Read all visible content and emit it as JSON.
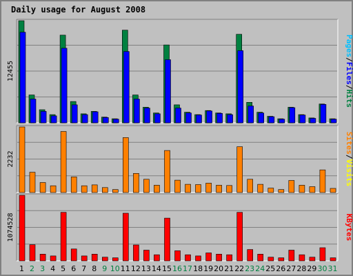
{
  "chart_data": {
    "type": "bar",
    "title": "Daily usage for August 2008",
    "categories": [
      "1",
      "2",
      "3",
      "4",
      "5",
      "6",
      "7",
      "8",
      "9",
      "10",
      "11",
      "12",
      "13",
      "14",
      "15",
      "16",
      "17",
      "18",
      "19",
      "20",
      "21",
      "22",
      "23",
      "24",
      "25",
      "26",
      "27",
      "28",
      "29",
      "30",
      "31"
    ],
    "weekend_days": [
      "2",
      "3",
      "9",
      "10",
      "16",
      "17",
      "23",
      "24",
      "30",
      "31"
    ],
    "colors": {
      "background": "#c0c0c0",
      "hits": "#008040",
      "files": "#0000ff",
      "pages": "#00c0ff",
      "visits": "#ffff00",
      "sites": "#ff8000",
      "kbytes": "#ff0000",
      "title": "#0000ff",
      "weekend_label": "#008040"
    },
    "panels": [
      {
        "max_label": "12455",
        "ylim": [
          0,
          12455
        ],
        "legend": [
          {
            "text": "Hits",
            "color": "#008040"
          },
          {
            "text": "Files",
            "color": "#0000ff"
          },
          {
            "text": "Pages",
            "color": "#00c0ff"
          }
        ],
        "separator_color": "#000000",
        "series": [
          {
            "name": "Hits",
            "color": "#008040",
            "values": [
              12455,
              3400,
              1600,
              1000,
              10700,
              2600,
              1100,
              1400,
              700,
              500,
              11300,
              3400,
              1900,
              1200,
              9500,
              2200,
              1300,
              1000,
              1500,
              1200,
              1100,
              10800,
              2500,
              1300,
              800,
              500,
              1900,
              1000,
              600,
              2300,
              500
            ]
          },
          {
            "name": "Files",
            "color": "#0000ff",
            "values": [
              11050,
              2900,
              1400,
              850,
              9100,
              2200,
              1000,
              1350,
              650,
              450,
              8700,
              2900,
              1800,
              1100,
              7700,
              1800,
              1200,
              950,
              1450,
              1150,
              1000,
              8800,
              2050,
              1200,
              750,
              450,
              1850,
              950,
              550,
              2250,
              450
            ]
          }
        ]
      },
      {
        "max_label": "2232",
        "ylim": [
          0,
          2232
        ],
        "legend": [
          {
            "text": "Visits",
            "color": "#ffff00"
          },
          {
            "text": "Sites",
            "color": "#ff8000"
          }
        ],
        "separator_color": "#000000",
        "series": [
          {
            "name": "Sites",
            "color": "#ff8000",
            "values": [
              2232,
              690,
              340,
              230,
              2080,
              530,
              230,
              260,
              170,
              100,
              1870,
              650,
              450,
              250,
              1430,
              420,
              280,
              270,
              320,
              250,
              240,
              1560,
              450,
              280,
              150,
              100,
              410,
              250,
              200,
              770,
              140
            ]
          }
        ]
      },
      {
        "max_label": "1074528",
        "ylim": [
          0,
          1074528
        ],
        "legend": [
          {
            "text": "KBytes",
            "color": "#ff0000"
          }
        ],
        "series": [
          {
            "name": "KBytes",
            "color": "#ff0000",
            "values": [
              1074528,
              265000,
              110000,
              80000,
              795000,
              195000,
              80000,
              110000,
              60000,
              50000,
              780000,
              260000,
              175000,
              100000,
              700000,
              165000,
              100000,
              80000,
              130000,
              110000,
              100000,
              795000,
              185000,
              110000,
              60000,
              50000,
              175000,
              100000,
              60000,
              215000,
              50000
            ]
          }
        ]
      }
    ]
  }
}
